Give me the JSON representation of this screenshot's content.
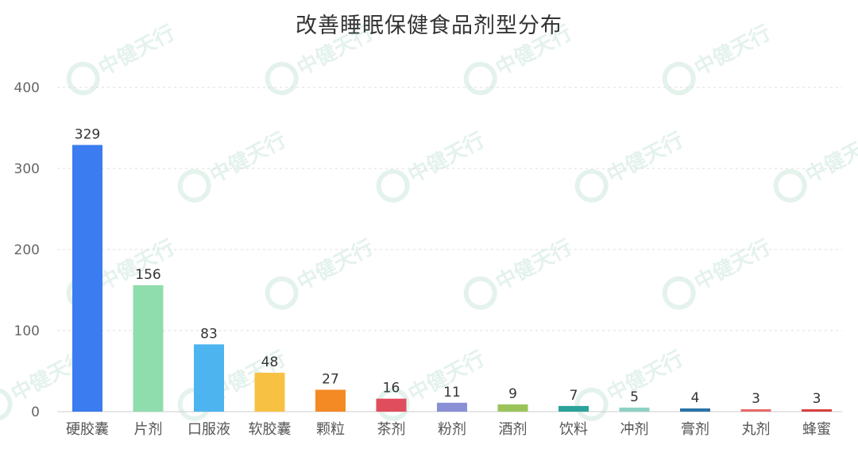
{
  "chart_data": {
    "type": "bar",
    "title": "改善睡眠保健食品剂型分布",
    "xlabel": "",
    "ylabel": "",
    "ylim": [
      0,
      400
    ],
    "yticks": [
      0,
      100,
      200,
      300,
      400
    ],
    "grid": true,
    "categories": [
      "硬胶囊",
      "片剂",
      "口服液",
      "软胶囊",
      "颗粒",
      "茶剂",
      "粉剂",
      "酒剂",
      "饮料",
      "冲剂",
      "膏剂",
      "丸剂",
      "蜂蜜"
    ],
    "values": [
      329,
      156,
      83,
      48,
      27,
      16,
      11,
      9,
      7,
      5,
      4,
      3,
      3
    ],
    "colors": [
      "#3b7cf0",
      "#8fdcad",
      "#4db4f0",
      "#f7c144",
      "#f48a24",
      "#e04d5c",
      "#8a8fd6",
      "#9ac45a",
      "#2aa39a",
      "#8fd0c2",
      "#2a72a8",
      "#e86a6a",
      "#d94040"
    ],
    "watermark": "中健天行"
  }
}
